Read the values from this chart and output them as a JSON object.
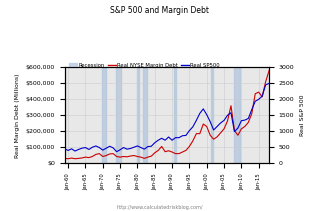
{
  "title": "S&P 500 and Margin Debt",
  "ylabel_left": "Real Margin Debt (Millions)",
  "ylabel_right": "Real S&P 500",
  "url": "http://www.calculatedriskblog.com/",
  "background_color": "#ffffff",
  "plot_background": "#f0f0f0",
  "recession_color": "#b0c4de",
  "recession_alpha": 0.7,
  "recessions": [
    [
      1969.75,
      1970.83
    ],
    [
      1973.75,
      1975.17
    ],
    [
      1980.0,
      1980.5
    ],
    [
      1981.5,
      1982.83
    ],
    [
      1990.5,
      1991.17
    ],
    [
      2001.17,
      2001.83
    ],
    [
      2007.92,
      2009.5
    ]
  ],
  "debt_color": "#cc0000",
  "sp500_color": "#0000cc",
  "ylim_left": [
    0,
    600000
  ],
  "ylim_right": [
    0,
    3000
  ],
  "yticks_left": [
    0,
    100000,
    200000,
    300000,
    400000,
    500000,
    600000
  ],
  "ytick_labels_left": [
    "$0",
    "$100,000",
    "$200,000",
    "$300,000",
    "$400,000",
    "$500,000",
    "$600,000"
  ],
  "yticks_right": [
    0,
    500,
    1000,
    1500,
    2000,
    2500,
    3000
  ],
  "xlim": [
    1959,
    2018
  ],
  "xtick_years": [
    1960,
    1965,
    1970,
    1975,
    1980,
    1985,
    1990,
    1995,
    2000,
    2005,
    2010,
    2015
  ],
  "xtick_labels": [
    "Jan-60",
    "Jan-65",
    "Jan-70",
    "Jan-75",
    "Jan-80",
    "Jan-85",
    "Jan-90",
    "Jan-95",
    "Jan-00",
    "Jan-05",
    "Jan-10",
    "Jan-15"
  ],
  "grid_color": "#cccccc",
  "legend_recession": "Recession",
  "legend_debt": "Real NYSE Margin Debt",
  "legend_sp500": "Real SP500",
  "debt_data": {
    "years": [
      1959,
      1960,
      1961,
      1962,
      1963,
      1964,
      1965,
      1966,
      1967,
      1968,
      1969,
      1970,
      1971,
      1972,
      1973,
      1974,
      1975,
      1976,
      1977,
      1978,
      1979,
      1980,
      1981,
      1982,
      1983,
      1984,
      1985,
      1986,
      1987,
      1988,
      1989,
      1990,
      1991,
      1992,
      1993,
      1994,
      1995,
      1996,
      1997,
      1998,
      1999,
      2000,
      2001,
      2002,
      2003,
      2004,
      2005,
      2006,
      2007,
      2008,
      2009,
      2010,
      2011,
      2012,
      2013,
      2014,
      2015,
      2016,
      2017,
      2018
    ],
    "values": [
      30000,
      28000,
      32000,
      28000,
      30000,
      33000,
      38000,
      35000,
      42000,
      55000,
      60000,
      42000,
      48000,
      58000,
      60000,
      42000,
      38000,
      42000,
      40000,
      45000,
      48000,
      42000,
      38000,
      30000,
      38000,
      44000,
      65000,
      80000,
      105000,
      72000,
      78000,
      70000,
      60000,
      60000,
      70000,
      80000,
      105000,
      140000,
      185000,
      185000,
      245000,
      230000,
      175000,
      150000,
      165000,
      190000,
      215000,
      265000,
      360000,
      205000,
      175000,
      215000,
      230000,
      255000,
      310000,
      435000,
      445000,
      415000,
      510000,
      580000
    ]
  },
  "sp500_data": {
    "years": [
      1959,
      1960,
      1961,
      1962,
      1963,
      1964,
      1965,
      1966,
      1967,
      1968,
      1969,
      1970,
      1971,
      1972,
      1973,
      1974,
      1975,
      1976,
      1977,
      1978,
      1979,
      1980,
      1981,
      1982,
      1983,
      1984,
      1985,
      1986,
      1987,
      1988,
      1989,
      1990,
      1991,
      1992,
      1993,
      1994,
      1995,
      1996,
      1997,
      1998,
      1999,
      2000,
      2001,
      2002,
      2003,
      2004,
      2005,
      2006,
      2007,
      2008,
      2009,
      2010,
      2011,
      2012,
      2013,
      2014,
      2015,
      2016,
      2017,
      2018
    ],
    "values": [
      450,
      400,
      450,
      380,
      430,
      470,
      490,
      430,
      500,
      540,
      490,
      410,
      470,
      530,
      480,
      360,
      420,
      490,
      440,
      460,
      500,
      540,
      490,
      440,
      520,
      530,
      640,
      720,
      780,
      720,
      820,
      720,
      800,
      800,
      860,
      870,
      1020,
      1140,
      1340,
      1560,
      1700,
      1520,
      1300,
      1040,
      1150,
      1260,
      1340,
      1500,
      1580,
      990,
      1100,
      1330,
      1350,
      1400,
      1680,
      1940,
      2000,
      2100,
      2450,
      2500
    ]
  }
}
